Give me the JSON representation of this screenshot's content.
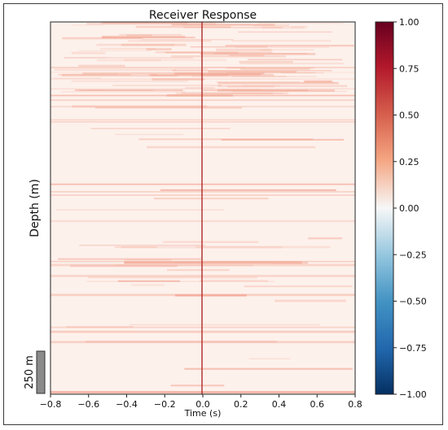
{
  "chart_data": {
    "type": "heatmap",
    "title": "Receiver Response",
    "xlabel": "Time (s)",
    "ylabel": "Depth (m)",
    "xlim": [
      -0.8,
      0.8
    ],
    "x_ticks": [
      "−0.8",
      "−0.6",
      "−0.4",
      "−0.2",
      "0.0",
      "0.2",
      "0.4",
      "0.6",
      "0.8"
    ],
    "x_tick_values": [
      -0.8,
      -0.6,
      -0.4,
      -0.2,
      0.0,
      0.2,
      0.4,
      0.6,
      0.8
    ],
    "colorbar": {
      "colormap": "RdBu_r",
      "range": [
        -1.0,
        1.0
      ],
      "ticks": [
        "1.00",
        "0.75",
        "0.50",
        "0.25",
        "0.00",
        "−0.25",
        "−0.50",
        "−0.75",
        "−1.00"
      ],
      "tick_values": [
        1.0,
        0.75,
        0.5,
        0.25,
        0.0,
        -0.25,
        -0.5,
        -0.75,
        -1.0
      ]
    },
    "scale_bar": {
      "label": "250 m",
      "color": "#8a8a8a"
    },
    "zero_lag_line_color": "#b03030",
    "grid": false
  }
}
